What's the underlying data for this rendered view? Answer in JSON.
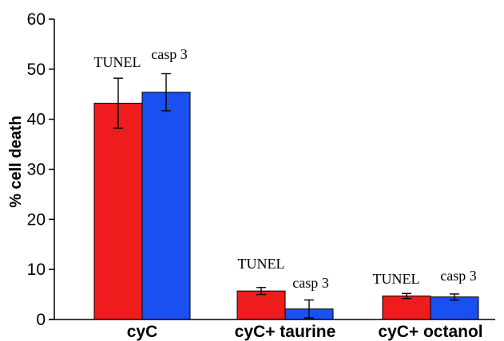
{
  "chart_data": {
    "type": "bar",
    "categories": [
      "cyC",
      "cyC+ taurine",
      "cyC+ octanol"
    ],
    "series": [
      {
        "name": "TUNEL",
        "values": [
          43.2,
          5.7,
          4.7
        ],
        "errors": [
          5.0,
          0.7,
          0.5
        ],
        "color": "#ee1c1c"
      },
      {
        "name": "casp 3",
        "values": [
          45.4,
          2.1,
          4.5
        ],
        "errors": [
          3.7,
          1.8,
          0.6
        ],
        "color": "#1a4ff0"
      }
    ],
    "annotations": [
      "TUNEL",
      "casp 3"
    ],
    "xlabel": "",
    "ylabel": "% cell death",
    "ylim": [
      0,
      60
    ],
    "yticks": [
      0,
      10,
      20,
      30,
      40,
      50,
      60
    ],
    "grid": false,
    "legend": "none"
  }
}
